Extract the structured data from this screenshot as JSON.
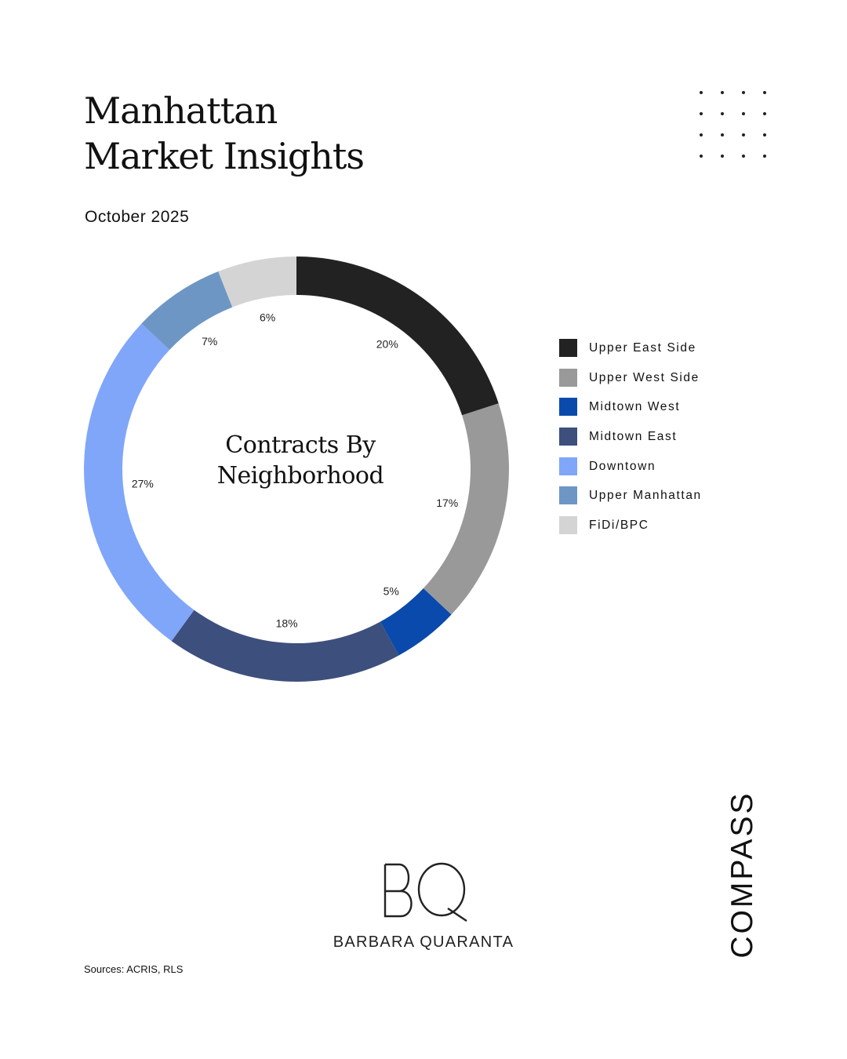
{
  "page": {
    "title_line1": "Manhattan",
    "title_line2": "Market Insights",
    "subtitle": "October 2025",
    "sources": "Sources: ACRIS, RLS",
    "brand_name": "BARBARA QUARANTA",
    "monogram": "BQ",
    "logo": "COMPASS"
  },
  "chart_data": {
    "type": "pie",
    "variant": "donut",
    "center_title": "Contracts By Neighborhood",
    "center_title_line1": "Contracts By",
    "center_title_line2": "Neighborhood",
    "categories": [
      "Upper East Side",
      "Upper West Side",
      "Midtown West",
      "Midtown East",
      "Downtown",
      "Upper Manhattan",
      "FiDi/BPC"
    ],
    "values": [
      20,
      17,
      5,
      18,
      27,
      7,
      6
    ],
    "data_labels": [
      "20%",
      "17%",
      "5%",
      "18%",
      "27%",
      "7%",
      "6%"
    ],
    "colors": [
      "#222222",
      "#999999",
      "#0a4aad",
      "#3d4f7c",
      "#80a6fa",
      "#6e96c4",
      "#d4d4d4"
    ],
    "legend_position": "right",
    "start_angle": "top, clockwise"
  }
}
